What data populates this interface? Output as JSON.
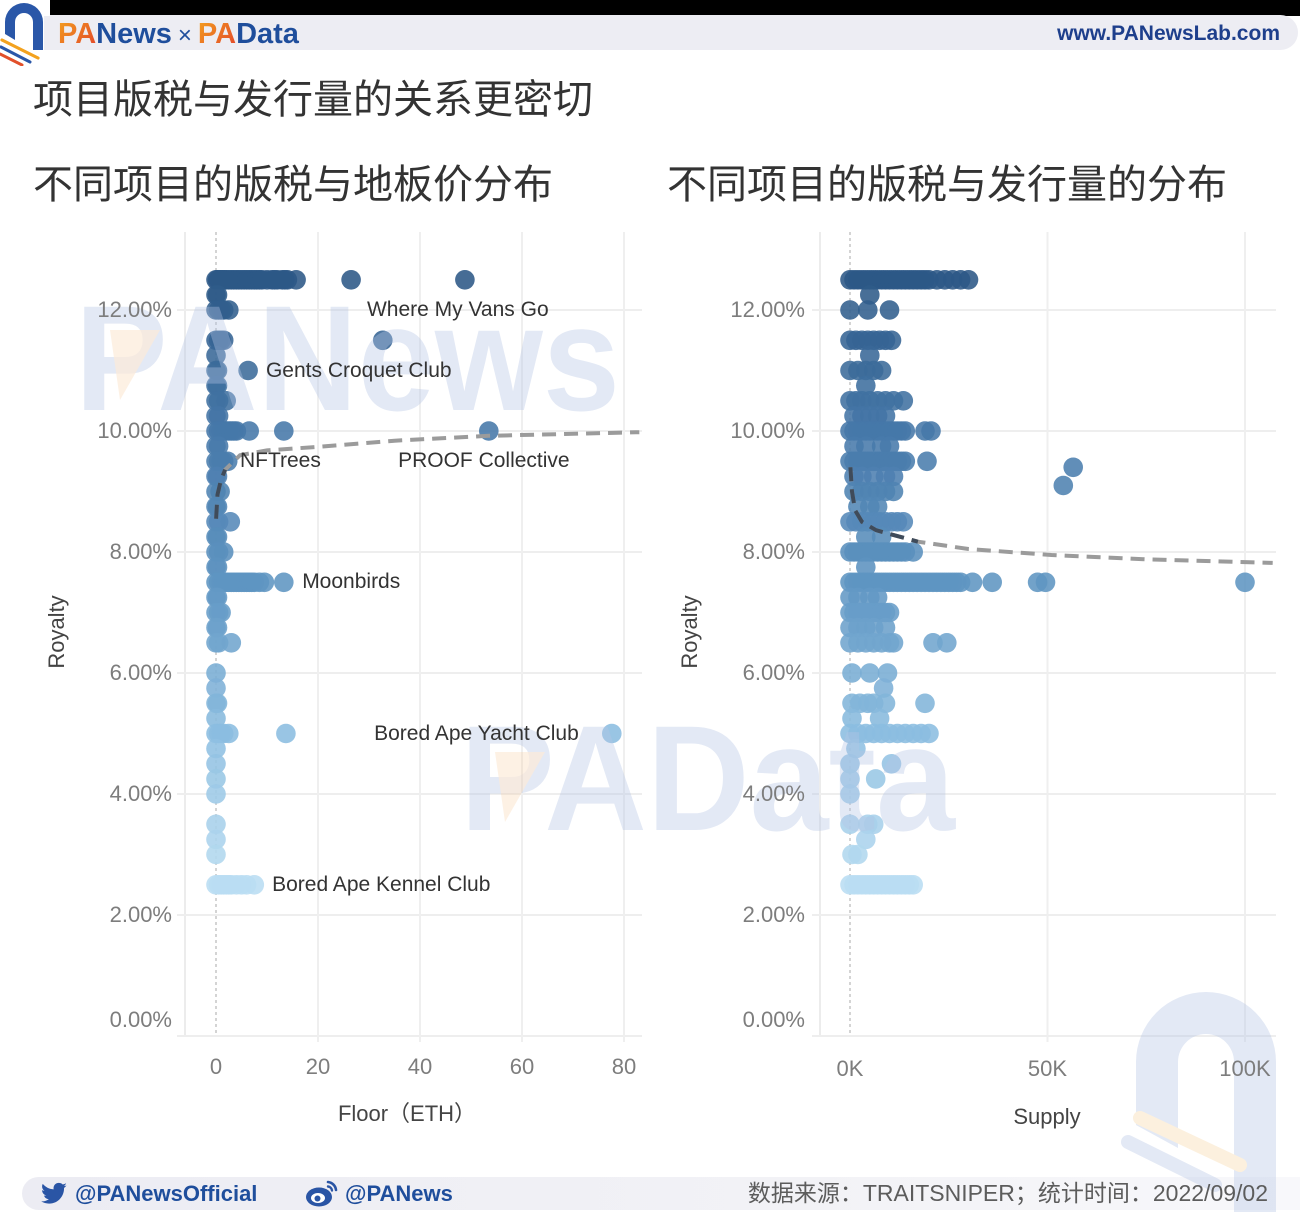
{
  "header": {
    "brand_news_prefix": "PA",
    "brand_news_suffix": "News",
    "brand_separator": "×",
    "brand_data_prefix": "PA",
    "brand_data_suffix": "Data",
    "url": "www.PANewsLab.com",
    "logo_icon": "panews-arch-logo",
    "brand_color": "#1f4e9c",
    "accent_color": "#ee7d22"
  },
  "title": "项目版税与发行量的关系更密切",
  "watermarks": {
    "top": "PANews",
    "middle": "PAData",
    "corner_icon": "panews-arch-logo"
  },
  "footer": {
    "twitter_icon": "twitter-icon",
    "twitter_handle": "@PANewsOfficial",
    "weibo_icon": "weibo-icon",
    "weibo_handle": "@PANews",
    "source": "数据来源：TRAITSNIPER；统计时间：2022/09/02"
  },
  "chart_data": [
    {
      "type": "scatter",
      "title": "不同项目的版税与地板价分布",
      "xlabel": "Floor（ETH）",
      "ylabel": "Royalty",
      "xlim": [
        -6,
        83
      ],
      "ylim": [
        0,
        13
      ],
      "grid": true,
      "x_ticks": [
        {
          "value": 0,
          "label": "0"
        },
        {
          "value": 20,
          "label": "20"
        },
        {
          "value": 40,
          "label": "40"
        },
        {
          "value": 60,
          "label": "60"
        },
        {
          "value": 80,
          "label": "80"
        }
      ],
      "y_ticks": [
        {
          "value": 0,
          "label": "0.00%"
        },
        {
          "value": 2,
          "label": "2.00%"
        },
        {
          "value": 4,
          "label": "4.00%"
        },
        {
          "value": 6,
          "label": "6.00%"
        },
        {
          "value": 8,
          "label": "8.00%"
        },
        {
          "value": 10,
          "label": "10.00%"
        },
        {
          "value": 12,
          "label": "12.00%"
        }
      ],
      "color_scale": [
        {
          "value": 2.5,
          "color": "#b9ddf2"
        },
        {
          "value": 5.0,
          "color": "#8bbde0"
        },
        {
          "value": 7.5,
          "color": "#5f95c2"
        },
        {
          "value": 10.0,
          "color": "#4577a8"
        },
        {
          "value": 12.5,
          "color": "#2c5886"
        }
      ],
      "rows": [
        {
          "y": 12.5,
          "x": [
            0,
            0.3,
            0.6,
            1,
            1.3,
            1.7,
            2,
            2.5,
            3,
            3.5,
            4,
            4.5,
            5,
            5.5,
            6,
            6.5,
            7,
            7.5,
            8,
            8.5,
            9,
            10,
            11,
            11.5,
            12,
            13,
            13.5,
            14,
            15.7,
            26.5,
            48.8
          ]
        },
        {
          "y": 12.25,
          "x": [
            0,
            0.3
          ]
        },
        {
          "y": 12.0,
          "x": [
            0,
            0.5,
            1,
            1.5,
            2.5
          ]
        },
        {
          "y": 11.5,
          "x": [
            0,
            0.5,
            1,
            1.5,
            32.7
          ]
        },
        {
          "y": 11.25,
          "x": [
            0
          ]
        },
        {
          "y": 11.0,
          "x": [
            0,
            0.3,
            6.3
          ]
        },
        {
          "y": 10.75,
          "x": [
            0,
            0.3
          ]
        },
        {
          "y": 10.5,
          "x": [
            0,
            0.5,
            2
          ]
        },
        {
          "y": 10.25,
          "x": [
            0,
            0.5
          ]
        },
        {
          "y": 10.0,
          "x": [
            0,
            0.5,
            1,
            1.5,
            2,
            2.5,
            3,
            3.5,
            4,
            6.5,
            13.3,
            53.5
          ]
        },
        {
          "y": 9.75,
          "x": [
            0,
            0.5
          ]
        },
        {
          "y": 9.5,
          "x": [
            0,
            0.5,
            1,
            1.5,
            2.3
          ]
        },
        {
          "y": 9.25,
          "x": [
            0,
            0.3
          ]
        },
        {
          "y": 9.0,
          "x": [
            0,
            0.8
          ]
        },
        {
          "y": 8.75,
          "x": [
            0,
            0.3
          ]
        },
        {
          "y": 8.5,
          "x": [
            0,
            0.5,
            2.8
          ]
        },
        {
          "y": 8.25,
          "x": [
            0,
            0.3
          ]
        },
        {
          "y": 8.0,
          "x": [
            0,
            0.5,
            1.5
          ]
        },
        {
          "y": 7.75,
          "x": [
            0,
            0.3
          ]
        },
        {
          "y": 7.5,
          "x": [
            0,
            0.5,
            1,
            1.5,
            2,
            2.5,
            3,
            3.5,
            4,
            4.5,
            5,
            5.5,
            6,
            6.5,
            7,
            7.5,
            8.5,
            9.5,
            13.3
          ]
        },
        {
          "y": 7.25,
          "x": [
            0,
            0.3
          ]
        },
        {
          "y": 7.0,
          "x": [
            0,
            0.5,
            1
          ]
        },
        {
          "y": 6.75,
          "x": [
            0,
            0.3
          ]
        },
        {
          "y": 6.5,
          "x": [
            0,
            0.5,
            3
          ]
        },
        {
          "y": 6.0,
          "x": [
            0
          ]
        },
        {
          "y": 5.75,
          "x": [
            0
          ]
        },
        {
          "y": 5.5,
          "x": [
            0,
            0.3
          ]
        },
        {
          "y": 5.25,
          "x": [
            0
          ]
        },
        {
          "y": 5.0,
          "x": [
            0,
            0.5,
            1,
            1.5,
            2.5,
            13.7,
            77.6
          ]
        },
        {
          "y": 4.75,
          "x": [
            0
          ]
        },
        {
          "y": 4.5,
          "x": [
            0
          ]
        },
        {
          "y": 4.25,
          "x": [
            0
          ]
        },
        {
          "y": 4.0,
          "x": [
            0
          ]
        },
        {
          "y": 3.5,
          "x": [
            0
          ]
        },
        {
          "y": 3.25,
          "x": [
            0
          ]
        },
        {
          "y": 3.0,
          "x": [
            0
          ]
        },
        {
          "y": 2.5,
          "x": [
            0,
            0.5,
            1,
            1.5,
            2,
            2.5,
            3,
            4,
            5,
            6,
            7.5
          ]
        }
      ],
      "trend": {
        "style": "dashed",
        "color": "#9b9b9b",
        "dark_color": "#2f3d4f",
        "dark_until": 2,
        "points": [
          [
            0.02,
            8.55
          ],
          [
            0.3,
            8.95
          ],
          [
            1,
            9.2
          ],
          [
            1.8,
            9.36
          ],
          [
            4.7,
            9.6
          ],
          [
            10,
            9.68
          ],
          [
            20.4,
            9.74
          ],
          [
            35,
            9.84
          ],
          [
            53.5,
            9.92
          ],
          [
            83,
            9.98
          ]
        ]
      },
      "labels": [
        {
          "text": "Where My Vans Go",
          "label_x": 29.6,
          "label_y": 12.0
        },
        {
          "text": "Gents Croquet Club",
          "point_x": 6.3,
          "point_y": 11.0,
          "label_x": 9.8,
          "label_y": 11.0
        },
        {
          "text": "NFTrees",
          "label_x": 4.7,
          "label_y": 9.5
        },
        {
          "text": "PROOF Collective",
          "point_x": 53.5,
          "point_y": 10.0,
          "label_x": 35.7,
          "label_y": 9.5
        },
        {
          "text": "Moonbirds",
          "point_x": 13.3,
          "point_y": 7.5,
          "label_x": 16.9,
          "label_y": 7.5
        },
        {
          "text": "Bored Ape Yacht Club",
          "point_x": 77.6,
          "point_y": 5.0,
          "label_x": 31.0,
          "label_y": 5.0
        },
        {
          "text": "Bored Ape Kennel Club",
          "point_x": 7.5,
          "point_y": 2.5,
          "label_x": 11.0,
          "label_y": 2.5
        }
      ]
    },
    {
      "type": "scatter",
      "title": "不同项目的版税与发行量的分布",
      "xlabel": "Supply",
      "ylabel": "Royalty",
      "xlim": [
        -7.5,
        107
      ],
      "ylim": [
        0,
        13
      ],
      "grid": true,
      "x_unit": "K",
      "x_ticks": [
        {
          "value": 0,
          "label": "0K"
        },
        {
          "value": 50,
          "label": "50K"
        },
        {
          "value": 100,
          "label": "100K"
        }
      ],
      "y_ticks": [
        {
          "value": 0,
          "label": "0.00%"
        },
        {
          "value": 2,
          "label": "2.00%"
        },
        {
          "value": 4,
          "label": "4.00%"
        },
        {
          "value": 6,
          "label": "6.00%"
        },
        {
          "value": 8,
          "label": "8.00%"
        },
        {
          "value": 10,
          "label": "10.00%"
        },
        {
          "value": 12,
          "label": "12.00%"
        }
      ],
      "color_scale": [
        {
          "value": 2.5,
          "color": "#b9ddf2"
        },
        {
          "value": 5.0,
          "color": "#8bbde0"
        },
        {
          "value": 7.5,
          "color": "#5f95c2"
        },
        {
          "value": 10.0,
          "color": "#4577a8"
        },
        {
          "value": 12.5,
          "color": "#2c5886"
        }
      ],
      "rows": [
        {
          "y": 12.5,
          "x": [
            0,
            1,
            2,
            3,
            4,
            5,
            6,
            7,
            8,
            9,
            10,
            11,
            12,
            13,
            14,
            15,
            16,
            17,
            18,
            19,
            20,
            22,
            24,
            26,
            28,
            30
          ]
        },
        {
          "y": 12.25,
          "x": [
            5
          ]
        },
        {
          "y": 12.0,
          "x": [
            0,
            4.5,
            10
          ]
        },
        {
          "y": 11.5,
          "x": [
            0,
            1.5,
            3,
            4.5,
            6,
            7.5,
            9,
            10.5
          ]
        },
        {
          "y": 11.25,
          "x": [
            5
          ]
        },
        {
          "y": 11.0,
          "x": [
            0,
            2,
            4,
            6,
            8
          ]
        },
        {
          "y": 10.75,
          "x": [
            4
          ]
        },
        {
          "y": 10.5,
          "x": [
            0,
            1.5,
            3,
            5,
            7,
            9,
            11,
            13.5
          ]
        },
        {
          "y": 10.25,
          "x": [
            1,
            3,
            5,
            7,
            9
          ]
        },
        {
          "y": 10.0,
          "x": [
            0,
            1,
            2,
            3,
            4,
            5,
            6,
            7,
            8,
            9,
            10,
            11,
            12,
            13,
            14,
            19,
            20.5
          ]
        },
        {
          "y": 9.75,
          "x": [
            1,
            4,
            8,
            10
          ]
        },
        {
          "y": 9.5,
          "x": [
            0,
            1,
            2,
            3,
            4,
            5,
            6,
            7,
            8,
            9,
            10,
            11,
            12,
            13,
            14,
            19.5
          ]
        },
        {
          "y": 9.4,
          "x": [
            56.5
          ]
        },
        {
          "y": 9.25,
          "x": [
            1,
            3,
            6,
            9,
            11
          ]
        },
        {
          "y": 9.1,
          "x": [
            54
          ]
        },
        {
          "y": 9.0,
          "x": [
            1,
            3,
            5,
            7,
            9,
            11
          ]
        },
        {
          "y": 8.75,
          "x": [
            2,
            5,
            7
          ]
        },
        {
          "y": 8.5,
          "x": [
            0,
            1.5,
            3,
            4.5,
            6,
            7.5,
            9,
            10.5,
            12,
            13.5
          ]
        },
        {
          "y": 8.25,
          "x": [
            4,
            8
          ]
        },
        {
          "y": 8.0,
          "x": [
            0,
            1,
            2,
            3,
            4,
            5,
            6,
            7,
            8,
            9,
            10,
            11,
            12,
            13,
            14,
            16
          ]
        },
        {
          "y": 7.75,
          "x": [
            4
          ]
        },
        {
          "y": 7.5,
          "x": [
            0,
            1,
            2,
            3,
            4,
            5,
            6,
            7,
            8,
            9,
            10,
            11,
            12,
            13,
            14,
            15,
            16,
            17,
            18,
            19,
            20,
            21,
            22,
            23,
            24,
            25,
            26,
            27,
            28,
            31,
            36,
            47.5,
            49.5,
            100
          ]
        },
        {
          "y": 7.25,
          "x": [
            0,
            2,
            5,
            7
          ]
        },
        {
          "y": 7.0,
          "x": [
            0,
            1,
            2,
            3,
            4,
            5,
            6,
            7,
            8,
            9,
            10
          ]
        },
        {
          "y": 6.75,
          "x": [
            0,
            2,
            4,
            6,
            9
          ]
        },
        {
          "y": 6.5,
          "x": [
            0,
            2,
            4,
            6,
            8,
            10,
            11,
            21,
            24.5
          ]
        },
        {
          "y": 6.0,
          "x": [
            0.5,
            5,
            9.5
          ]
        },
        {
          "y": 5.75,
          "x": [
            8.5
          ]
        },
        {
          "y": 5.5,
          "x": [
            0.5,
            2.5,
            4.5,
            6,
            9,
            19
          ]
        },
        {
          "y": 5.25,
          "x": [
            0.5,
            7.5
          ]
        },
        {
          "y": 5.0,
          "x": [
            0,
            2,
            4,
            6,
            8,
            10,
            12,
            14,
            16,
            18,
            20
          ]
        },
        {
          "y": 4.75,
          "x": [
            1.5
          ]
        },
        {
          "y": 4.5,
          "x": [
            0,
            10.5
          ]
        },
        {
          "y": 4.25,
          "x": [
            0,
            6.5
          ]
        },
        {
          "y": 4.0,
          "x": [
            0
          ]
        },
        {
          "y": 3.5,
          "x": [
            0,
            4.5,
            6
          ]
        },
        {
          "y": 3.25,
          "x": [
            4
          ]
        },
        {
          "y": 3.0,
          "x": [
            0.5,
            2
          ]
        },
        {
          "y": 2.5,
          "x": [
            0,
            1,
            2,
            3,
            4,
            5,
            6,
            7,
            8,
            9,
            10,
            11,
            12,
            13,
            14,
            15,
            16
          ]
        }
      ],
      "trend": {
        "style": "dashed",
        "color": "#9b9b9b",
        "dark_color": "#2f3d4f",
        "dark_until": 20,
        "points": [
          [
            0.1,
            9.4
          ],
          [
            0.5,
            9.0
          ],
          [
            1.3,
            8.69
          ],
          [
            3,
            8.5
          ],
          [
            6.6,
            8.36
          ],
          [
            17.2,
            8.17
          ],
          [
            30,
            8.05
          ],
          [
            51,
            7.95
          ],
          [
            75,
            7.88
          ],
          [
            107,
            7.82
          ]
        ]
      },
      "labels": []
    }
  ]
}
